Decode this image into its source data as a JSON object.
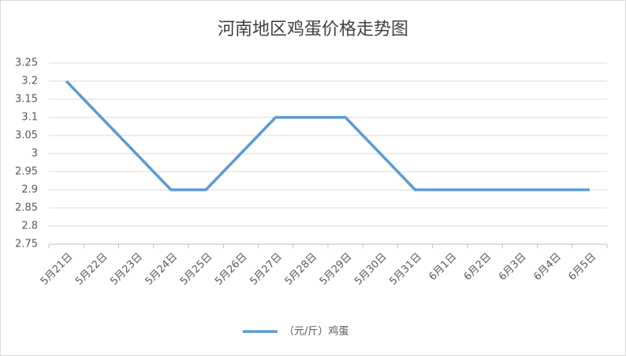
{
  "chart_data": {
    "type": "line",
    "title": "河南地区鸡蛋价格走势图",
    "categories": [
      "5月21日",
      "5月22日",
      "5月23日",
      "5月24日",
      "5月25日",
      "5月26日",
      "5月27日",
      "5月28日",
      "5月29日",
      "5月30日",
      "5月31日",
      "6月1日",
      "6月2日",
      "6月3日",
      "6月4日",
      "6月5日"
    ],
    "series": [
      {
        "name": "（元/斤）鸡蛋",
        "color": "#5b9bd5",
        "values": [
          3.2,
          3.1,
          3.0,
          2.9,
          2.9,
          3.0,
          3.1,
          3.1,
          3.1,
          3.0,
          2.9,
          2.9,
          2.9,
          2.9,
          2.9,
          2.9
        ]
      }
    ],
    "ylim": [
      2.75,
      3.25
    ],
    "yticks": [
      2.75,
      2.8,
      2.85,
      2.9,
      2.95,
      3,
      3.05,
      3.1,
      3.15,
      3.2,
      3.25
    ],
    "grid": true,
    "legend": "bottom"
  }
}
